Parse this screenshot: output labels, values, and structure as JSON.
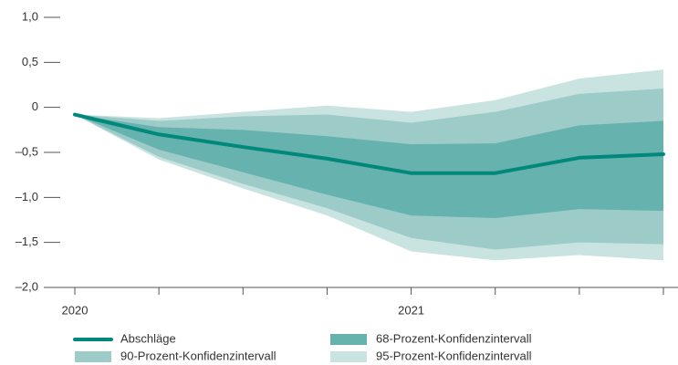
{
  "chart_data": {
    "type": "line",
    "categories": [
      "2020",
      null,
      null,
      null,
      "2021",
      null,
      null,
      null
    ],
    "series": [
      {
        "name": "Abschläge",
        "color": "#00897b",
        "values": [
          -0.08,
          -0.3,
          -0.44,
          -0.57,
          -0.73,
          -0.73,
          -0.56,
          -0.52
        ]
      },
      {
        "name": "68-Prozent-Konfidenzintervall",
        "color": "#66b2ae",
        "upper": [
          -0.08,
          -0.22,
          -0.25,
          -0.32,
          -0.41,
          -0.4,
          -0.2,
          -0.15
        ],
        "lower": [
          -0.08,
          -0.47,
          -0.72,
          -0.97,
          -1.2,
          -1.23,
          -1.13,
          -1.15
        ]
      },
      {
        "name": "90-Prozent-Konfidenzintervall",
        "color": "#9ccbc8",
        "upper": [
          -0.08,
          -0.15,
          -0.1,
          -0.08,
          -0.17,
          -0.05,
          0.15,
          0.21
        ],
        "lower": [
          -0.08,
          -0.55,
          -0.85,
          -1.12,
          -1.45,
          -1.58,
          -1.5,
          -1.52
        ]
      },
      {
        "name": "95-Prozent-Konfidenzintervall",
        "color": "#c9e3e1",
        "upper": [
          -0.08,
          -0.12,
          -0.05,
          0.02,
          -0.05,
          0.08,
          0.32,
          0.42
        ],
        "lower": [
          -0.08,
          -0.58,
          -0.9,
          -1.2,
          -1.6,
          -1.7,
          -1.64,
          -1.7
        ]
      }
    ],
    "ylim": [
      -2.0,
      1.0
    ],
    "yticks": [
      {
        "value": 1.0,
        "label": "1,0"
      },
      {
        "value": 0.5,
        "label": "0,5"
      },
      0,
      {
        "value": -0.5,
        "label": "–0,5"
      },
      {
        "value": -1.0,
        "label": "–1,0"
      },
      {
        "value": -1.5,
        "label": "–1,5"
      },
      {
        "value": -2.0,
        "label": "–2,0"
      }
    ]
  }
}
